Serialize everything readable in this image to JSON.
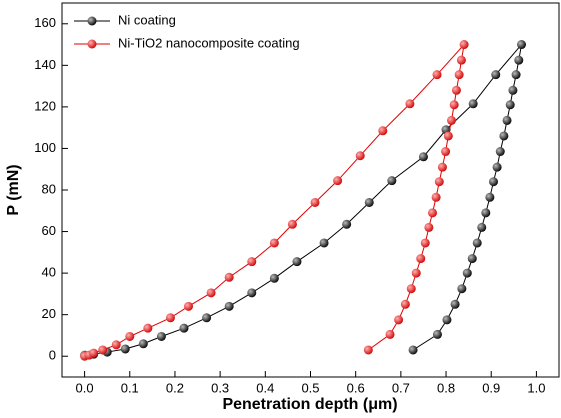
{
  "chart_data": {
    "type": "line",
    "xlabel": "Penetration depth (μm)",
    "ylabel": "P (mN)",
    "xlim": [
      -0.05,
      1.05
    ],
    "ylim": [
      -10,
      170
    ],
    "xticks": [
      {
        "value": 0,
        "label": "0.0"
      },
      0.1,
      0.2,
      0.3,
      0.4,
      0.5,
      0.6,
      0.7,
      0.8,
      0.9,
      {
        "value": 1,
        "label": "1.0"
      }
    ],
    "yticks": [
      0,
      20,
      40,
      60,
      80,
      100,
      120,
      140,
      160
    ],
    "legend": "upper-left",
    "grid": false,
    "series": [
      {
        "name": "Ni coating",
        "color": "#000000",
        "x": [
          0,
          0.02,
          0.05,
          0.09,
          0.13,
          0.17,
          0.22,
          0.27,
          0.32,
          0.37,
          0.42,
          0.47,
          0.53,
          0.58,
          0.63,
          0.68,
          0.75,
          0.8,
          0.86,
          0.91,
          0.967,
          0.961,
          0.955,
          0.948,
          0.942,
          0.935,
          0.928,
          0.92,
          0.913,
          0.905,
          0.897,
          0.888,
          0.879,
          0.869,
          0.858,
          0.847,
          0.835,
          0.82,
          0.802,
          0.781,
          0.727
        ],
        "values": [
          0.5,
          1,
          2,
          3.5,
          6,
          9.5,
          13.5,
          18.5,
          24,
          30.5,
          37.5,
          45.5,
          54.5,
          63.5,
          74,
          84.5,
          96,
          109,
          121.5,
          135.5,
          150,
          142.5,
          135.5,
          128,
          121,
          113.5,
          106,
          98.5,
          91,
          84,
          76.5,
          69,
          62,
          54.5,
          47,
          40,
          32.5,
          25,
          17.5,
          10.5,
          3
        ]
      },
      {
        "name": "Ni-TiO2 nanocomposite coating",
        "color": "#e00000",
        "x": [
          0,
          0.01,
          0.02,
          0.04,
          0.07,
          0.1,
          0.14,
          0.19,
          0.23,
          0.28,
          0.32,
          0.37,
          0.42,
          0.46,
          0.51,
          0.56,
          0.61,
          0.66,
          0.72,
          0.78,
          0.84,
          0.834,
          0.829,
          0.823,
          0.818,
          0.812,
          0.805,
          0.799,
          0.792,
          0.785,
          0.778,
          0.77,
          0.762,
          0.754,
          0.744,
          0.734,
          0.723,
          0.71,
          0.695,
          0.676,
          0.628
        ],
        "values": [
          0,
          0.5,
          1.5,
          3,
          5.5,
          9.5,
          13.5,
          18.5,
          24,
          30.5,
          38,
          45.5,
          54.5,
          63.5,
          74,
          84.5,
          96.5,
          108.5,
          121.5,
          135.5,
          150,
          142.5,
          135.5,
          128,
          121,
          113.5,
          106,
          98.5,
          91,
          84,
          76.5,
          69,
          62,
          54.5,
          47,
          40,
          32.5,
          25,
          17.5,
          10.5,
          3
        ]
      }
    ]
  }
}
